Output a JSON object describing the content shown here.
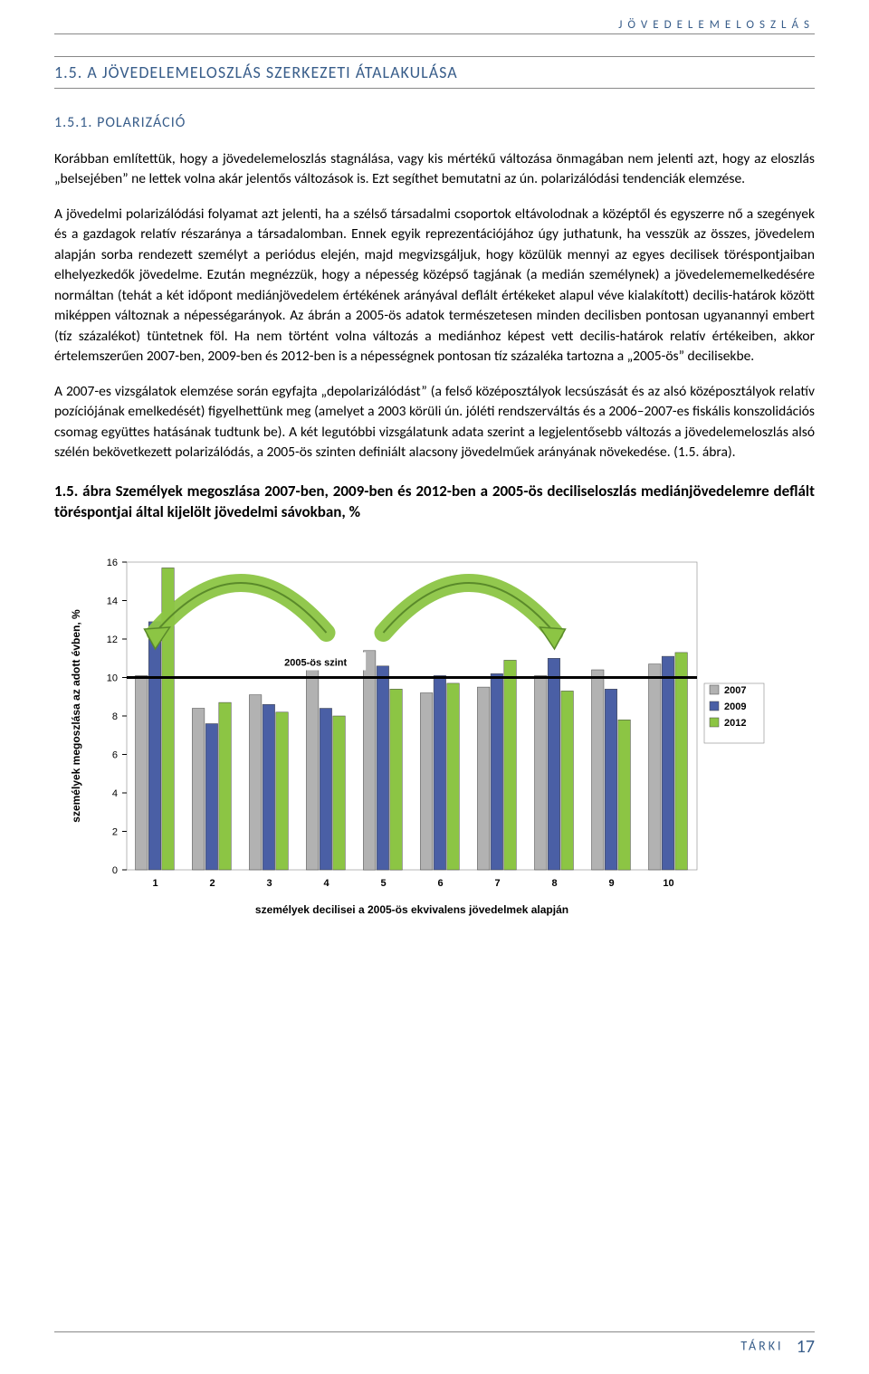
{
  "header": {
    "label": "JÖVEDELEMELOSZLÁS"
  },
  "section": {
    "title": "1.5. A JÖVEDELEMELOSZLÁS SZERKEZETI ÁTALAKULÁSA"
  },
  "subsection": {
    "title": "1.5.1. POLARIZÁCIÓ"
  },
  "paragraphs": {
    "p1": "Korábban említettük, hogy a jövedelemeloszlás stagnálása, vagy kis mértékű változása önmagában nem jelenti azt, hogy az eloszlás „belsejében” ne lettek volna akár jelentős változások is. Ezt segíthet bemutatni az ún. polarizálódási tendenciák elemzése.",
    "p2": "A jövedelmi polarizálódási folyamat azt jelenti, ha a szélső társadalmi csoportok eltávolodnak a középtől és egyszerre nő a szegények és a gazdagok relatív részaránya a társadalomban. Ennek egyik reprezentációjához úgy juthatunk, ha vesszük az összes, jövedelem alapján sorba rendezett személyt a periódus elején, majd megvizsgáljuk, hogy közülük mennyi az egyes decilisek töréspontjaiban elhelyezkedők jövedelme. Ezután megnézzük, hogy a népesség középső tagjának (a medián személynek) a jövedelememelkedésére normáltan (tehát a két időpont mediánjövedelem értékének arányával deflált értékeket alapul véve kialakított) decilis-határok között miképpen változnak a népességarányok. Az ábrán a 2005-ös adatok természetesen minden decilisben pontosan ugyanannyi embert (tíz százalékot) tüntetnek föl. Ha nem történt volna változás a mediánhoz képest vett decilis-határok relatív értékeiben, akkor értelemszerűen 2007-ben, 2009-ben és 2012-ben is a népességnek pontosan tíz százaléka tartozna a „2005-ös” decilisekbe.",
    "p3": "A 2007-es vizsgálatok elemzése során egyfajta „depolarizálódást” (a felső középosztályok lecsúszását és az alsó középosztályok relatív pozíciójának emelkedését) figyelhettünk meg (amelyet a 2003 körüli ún. jóléti rendszerváltás és a 2006–2007-es fiskális konszolidációs csomag együttes hatásának tudtunk be). A két legutóbbi vizsgálatunk adata szerint a legjelentősebb változás a jövedelemeloszlás alsó szélén bekövetkezett polarizálódás, a 2005-ös szinten definiált alacsony jövedelműek arányának növekedése. (1.5. ábra)."
  },
  "figure_caption": "1.5. ábra Személyek megoszlása 2007-ben, 2009-ben és 2012-ben a 2005-ös deciliseloszlás mediánjövedelemre deflált töréspontjai által kijelölt jövedelmi sávokban, %",
  "chart": {
    "type": "bar",
    "categories": [
      "1",
      "2",
      "3",
      "4",
      "5",
      "6",
      "7",
      "8",
      "9",
      "10"
    ],
    "series": [
      {
        "name": "2007",
        "color": "#b2b2b2",
        "values": [
          10.1,
          8.4,
          9.1,
          11.2,
          11.4,
          9.2,
          9.5,
          10.1,
          10.4,
          10.7
        ]
      },
      {
        "name": "2009",
        "color": "#4a5fa5",
        "values": [
          12.9,
          7.6,
          8.6,
          8.4,
          10.6,
          10.1,
          10.2,
          11.0,
          9.4,
          11.1
        ]
      },
      {
        "name": "2012",
        "color": "#8cc544",
        "values": [
          15.7,
          8.7,
          8.2,
          8.0,
          9.4,
          9.7,
          10.9,
          9.3,
          7.8,
          11.3
        ]
      }
    ],
    "reference_line": {
      "value": 10,
      "label": "2005-ös szint",
      "color": "#000000",
      "width": 3
    },
    "y_axis": {
      "min": 0,
      "max": 16,
      "step": 2,
      "label": "személyek megoszlása az adott évben, %",
      "fontsize": 12
    },
    "x_axis": {
      "label": "személyek decilisei a 2005-ös  ekvivalens jövedelmek alapján",
      "fontsize": 12
    },
    "background_color": "#ffffff",
    "plot_bg": "#ffffff",
    "grid_color": "#000000",
    "tick_fontsize": 11,
    "bar_group_width": 0.7,
    "legend_position": "right",
    "arrows": [
      {
        "from_decile": 4,
        "to_decile": 1,
        "color": "#8cc544",
        "stroke": "#5a8a2a"
      },
      {
        "from_decile": 5,
        "to_decile": 8,
        "color": "#8cc544",
        "stroke": "#5a8a2a"
      }
    ]
  },
  "footer": {
    "org": "TÁRKI",
    "page": "17"
  }
}
